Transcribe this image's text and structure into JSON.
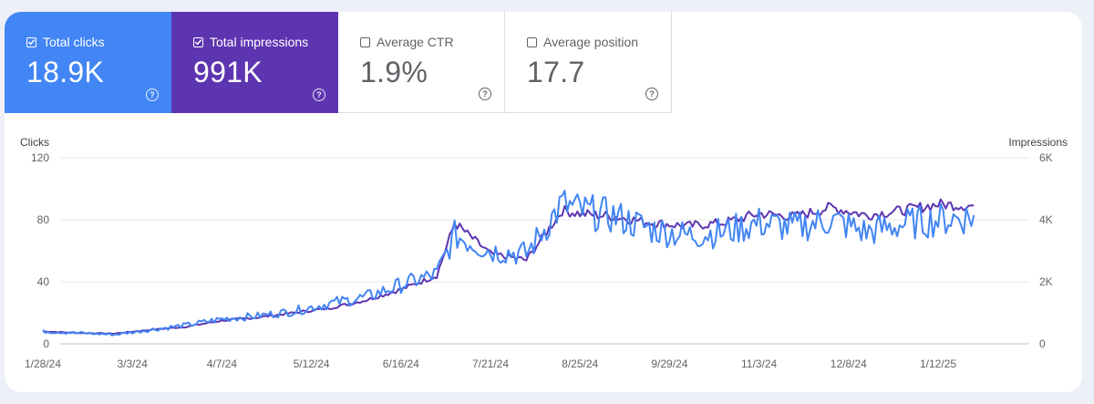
{
  "metrics": [
    {
      "label": "Total clicks",
      "value": "18.9K",
      "checked": true,
      "color": "#4285f4",
      "icon": "help-icon"
    },
    {
      "label": "Total impressions",
      "value": "991K",
      "checked": true,
      "color": "#5e35b1",
      "icon": "help-icon"
    },
    {
      "label": "Average CTR",
      "value": "1.9%",
      "checked": false,
      "color": "#ffffff",
      "icon": "help-icon"
    },
    {
      "label": "Average position",
      "value": "17.7",
      "checked": false,
      "color": "#ffffff",
      "icon": "help-icon"
    }
  ],
  "chart_data": {
    "type": "line",
    "ylabel_left": "Clicks",
    "ylabel_right": "Impressions",
    "yticks_left": [
      "0",
      "40",
      "80",
      "120"
    ],
    "yticks_right": [
      "0",
      "2K",
      "4K",
      "6K"
    ],
    "ylim_left": [
      0,
      120
    ],
    "ylim_right": [
      0,
      6000
    ],
    "xticks": [
      "1/28/24",
      "3/3/24",
      "4/7/24",
      "5/12/24",
      "6/16/24",
      "7/21/24",
      "8/25/24",
      "9/29/24",
      "11/3/24",
      "12/8/24",
      "1/12/25"
    ],
    "grid": true,
    "series": [
      {
        "name": "Total clicks",
        "axis": "left",
        "color": "#4285f4",
        "x": [
          "1/28/24",
          "2/11/24",
          "2/25/24",
          "3/10/24",
          "3/24/24",
          "4/7/24",
          "4/21/24",
          "5/5/24",
          "5/19/24",
          "6/2/24",
          "6/16/24",
          "6/30/24",
          "7/7/24",
          "7/21/24",
          "8/4/24",
          "8/18/24",
          "8/25/24",
          "9/8/24",
          "9/22/24",
          "10/6/24",
          "10/20/24",
          "11/3/24",
          "11/17/24",
          "12/1/24",
          "12/15/24",
          "12/29/24",
          "1/12/25",
          "1/26/25"
        ],
        "values": [
          8,
          7,
          6,
          9,
          12,
          16,
          18,
          21,
          26,
          30,
          38,
          45,
          70,
          60,
          58,
          90,
          86,
          82,
          74,
          70,
          72,
          78,
          75,
          80,
          72,
          77,
          80,
          82
        ]
      },
      {
        "name": "Total impressions",
        "axis": "right",
        "color": "#5e35b1",
        "x": [
          "1/28/24",
          "2/11/24",
          "2/25/24",
          "3/10/24",
          "3/24/24",
          "4/7/24",
          "4/21/24",
          "5/5/24",
          "5/19/24",
          "6/2/24",
          "6/16/24",
          "6/30/24",
          "7/7/24",
          "7/21/24",
          "8/4/24",
          "8/18/24",
          "8/25/24",
          "9/8/24",
          "9/22/24",
          "10/6/24",
          "10/20/24",
          "11/3/24",
          "11/17/24",
          "12/1/24",
          "12/15/24",
          "12/29/24",
          "1/12/25",
          "1/26/25"
        ],
        "values": [
          400,
          350,
          330,
          450,
          550,
          750,
          850,
          1000,
          1150,
          1400,
          1750,
          2200,
          3900,
          2900,
          2700,
          4300,
          4200,
          4100,
          3900,
          3800,
          3900,
          4200,
          4100,
          4400,
          4150,
          4300,
          4500,
          4450
        ]
      }
    ]
  }
}
